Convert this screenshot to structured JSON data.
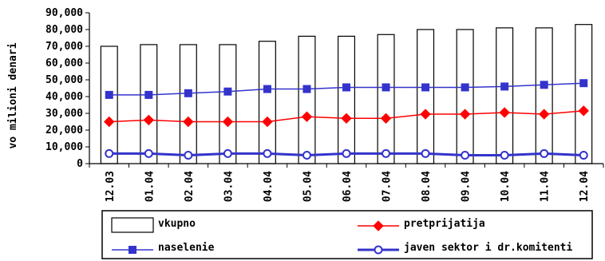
{
  "chart_data": {
    "type": "bar",
    "ylabel": "vo milioni denari",
    "ylim": [
      0,
      90000
    ],
    "yticks": [
      "0",
      "10,000",
      "20,000",
      "30,000",
      "40,000",
      "50,000",
      "60,000",
      "70,000",
      "80,000",
      "90,000"
    ],
    "categories": [
      "12.03",
      "01.04",
      "02.04",
      "03.04",
      "04.04",
      "05.04",
      "06.04",
      "07.04",
      "08.04",
      "09.04",
      "10.04",
      "11.04",
      "12.04"
    ],
    "series": [
      {
        "name": "vkupno",
        "kind": "bar",
        "color": "#ffffff",
        "values": [
          70000,
          71000,
          71000,
          71000,
          73000,
          76000,
          76000,
          77000,
          80000,
          80000,
          81000,
          81000,
          83000
        ]
      },
      {
        "name": "pretprijatija",
        "kind": "line",
        "marker": "diamond",
        "color": "#ff0000",
        "values": [
          25000,
          26000,
          25000,
          25000,
          25000,
          28000,
          27000,
          27000,
          29500,
          29500,
          30500,
          29500,
          31500
        ]
      },
      {
        "name": "naselenie",
        "kind": "line",
        "marker": "square",
        "color": "#3333cc",
        "values": [
          41000,
          41000,
          42000,
          43000,
          44500,
          44500,
          45500,
          45500,
          45500,
          45500,
          46000,
          47000,
          48000
        ]
      },
      {
        "name": "javen sektor i dr.komitenti",
        "kind": "line",
        "marker": "circle",
        "color": "#3333cc",
        "values": [
          6000,
          6000,
          5000,
          6000,
          6000,
          5000,
          6000,
          6000,
          6000,
          5000,
          5000,
          6000,
          5000
        ]
      }
    ],
    "legend_position": "bottom",
    "grid": false
  }
}
